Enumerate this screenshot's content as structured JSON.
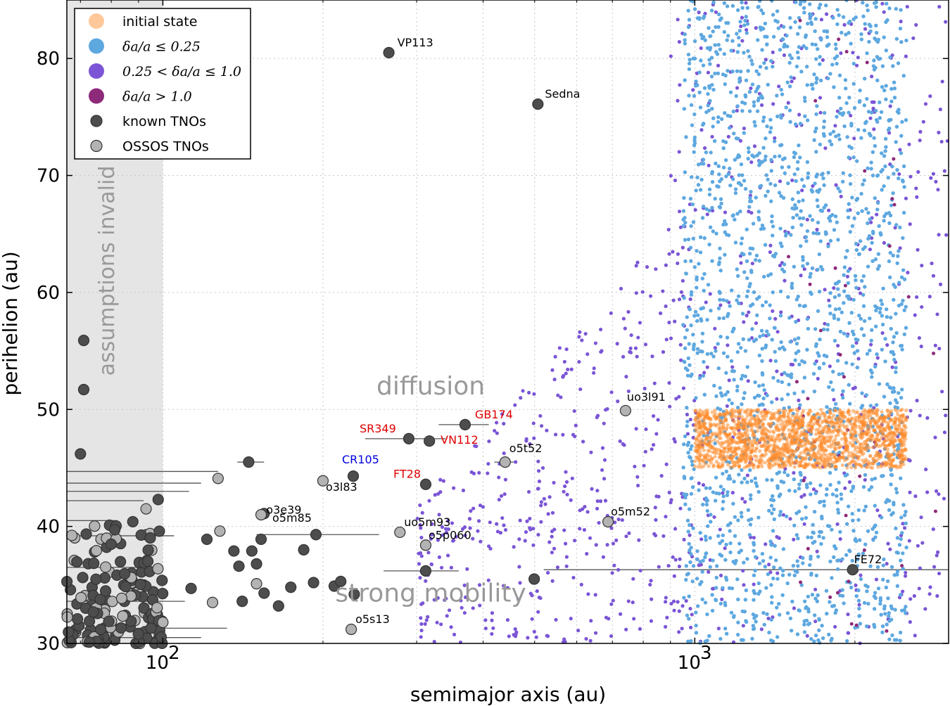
{
  "chart_data": {
    "type": "scatter",
    "xscale": "log",
    "xlim": [
      66,
      3000
    ],
    "ylim": [
      30,
      85
    ],
    "xlabel": "semimajor axis (au)",
    "ylabel": "perihelion (au)",
    "x_tick_labels": [
      {
        "value": 100,
        "base": "10",
        "exp": "2"
      },
      {
        "value": 1000,
        "base": "10",
        "exp": "3"
      }
    ],
    "y_ticks": [
      30,
      40,
      50,
      60,
      70,
      80
    ],
    "grid": true,
    "legend_position": "top-left",
    "legend": [
      {
        "key": "initial",
        "label": "initial state",
        "color": "#ffc89a",
        "math": false
      },
      {
        "key": "small",
        "label": "δa/a ≤ 0.25",
        "color": "#5ea8e0",
        "math": true
      },
      {
        "key": "medium",
        "label": "0.25 < δa/a ≤ 1.0",
        "color": "#7b55d6",
        "math": true
      },
      {
        "key": "large",
        "label": "δa/a > 1.0",
        "color": "#8e2a7a",
        "math": true
      },
      {
        "key": "known",
        "label": "known TNOs",
        "color": "#4d4d4d",
        "math": false
      },
      {
        "key": "ossos",
        "label": "OSSOS TNOs",
        "color": "#b3b3b3",
        "math": false
      }
    ],
    "colors": {
      "initial": "#ff8a2a",
      "small": "#5ea8e0",
      "medium": "#7b55d6",
      "large": "#8e2a7a",
      "known": "#4d4d4d",
      "ossos": "#b3b3b3",
      "shade": "#e5e5e5"
    },
    "shaded_region": {
      "x_range": [
        66,
        100
      ],
      "label": "assumptions invalid"
    },
    "region_labels": [
      {
        "text": "diffusion",
        "x": 300,
        "y": 52
      },
      {
        "text": "strong mobility",
        "x": 300,
        "y": 34.3
      }
    ],
    "simulation": {
      "initial_state": {
        "a_range": [
          1000,
          2500
        ],
        "q_range": [
          45,
          50
        ],
        "count": 1700
      },
      "small_change": {
        "a_range": [
          950,
          2500
        ],
        "q_range": [
          30,
          85
        ],
        "count": 1900
      },
      "medium_change": {
        "a_range": [
          300,
          3000
        ],
        "q_range": [
          30,
          85
        ],
        "count": 900
      },
      "large_change": {
        "a_range": [
          1500,
          3000
        ],
        "q_range": [
          30,
          85
        ],
        "count": 40
      }
    },
    "named_objects": [
      {
        "name": "VP113",
        "a": 266,
        "q": 80.5,
        "kind": "known",
        "label_color": "#000000",
        "lx": 12,
        "ly": -9
      },
      {
        "name": "Sedna",
        "a": 507,
        "q": 76.1,
        "kind": "known",
        "label_color": "#000000",
        "lx": 10,
        "ly": -9
      },
      {
        "name": "GB174",
        "a": 370,
        "q": 48.7,
        "kind": "known",
        "label_color": "#dd0000",
        "lx": 14,
        "ly": -9,
        "err": [
          330,
          410
        ]
      },
      {
        "name": "SR349",
        "a": 290,
        "q": 47.5,
        "kind": "known",
        "label_color": "#dd0000",
        "lx": -70,
        "ly": -9,
        "err": [
          240,
          340
        ]
      },
      {
        "name": "VN112",
        "a": 317,
        "q": 47.3,
        "kind": "known",
        "label_color": "#dd0000",
        "lx": 16,
        "ly": 4
      },
      {
        "name": "CR105",
        "a": 228,
        "q": 44.3,
        "kind": "known",
        "label_color": "#0000dd",
        "lx": -16,
        "ly": -18
      },
      {
        "name": "FT28",
        "a": 312,
        "q": 43.6,
        "kind": "known",
        "label_color": "#dd0000",
        "lx": -46,
        "ly": -9
      },
      {
        "name": "uo3l91",
        "a": 741,
        "q": 49.9,
        "kind": "ossos",
        "label_color": "#000000",
        "lx": 2,
        "ly": -14
      },
      {
        "name": "o5t52",
        "a": 440,
        "q": 45.5,
        "kind": "ossos",
        "label_color": "#000000",
        "lx": 6,
        "ly": -14,
        "err": [
          420,
          460
        ]
      },
      {
        "name": "o3l83",
        "a": 200,
        "q": 43.9,
        "kind": "ossos",
        "label_color": "#000000",
        "lx": 4,
        "ly": 14
      },
      {
        "name": "o3e39",
        "a": 155,
        "q": 41.1,
        "kind": "known",
        "label_color": "#000000",
        "lx": 3,
        "ly": 0
      },
      {
        "name": "o5m85",
        "a": 153,
        "q": 41.0,
        "kind": "ossos",
        "label_color": "#000000",
        "lx": 16,
        "ly": 10
      },
      {
        "name": "uo5m93",
        "a": 279,
        "q": 39.5,
        "kind": "ossos",
        "label_color": "#000000",
        "lx": 6,
        "ly": -9
      },
      {
        "name": "o5p060",
        "a": 312,
        "q": 38.4,
        "kind": "ossos",
        "label_color": "#000000",
        "lx": 4,
        "ly": -9
      },
      {
        "name": "o5m52",
        "a": 687,
        "q": 40.4,
        "kind": "ossos",
        "label_color": "#000000",
        "lx": 4,
        "ly": -9
      },
      {
        "name": "FE72",
        "a": 1980,
        "q": 36.3,
        "kind": "known",
        "label_color": "#000000",
        "lx": 2,
        "ly": -9,
        "err": [
          520,
          3000
        ]
      },
      {
        "name": "o5s13",
        "a": 226,
        "q": 31.2,
        "kind": "ossos",
        "label_color": "#000000",
        "lx": 6,
        "ly": -9
      }
    ],
    "other_objects": [
      {
        "a": 71,
        "q": 55.9,
        "kind": "known"
      },
      {
        "a": 71,
        "q": 51.7,
        "kind": "known"
      },
      {
        "a": 70,
        "q": 46.2,
        "kind": "known"
      },
      {
        "a": 145,
        "q": 45.5,
        "kind": "known",
        "err": [
          138,
          155
        ]
      },
      {
        "a": 127,
        "q": 44.1,
        "kind": "ossos"
      },
      {
        "a": 98,
        "q": 42.3,
        "kind": "known"
      },
      {
        "a": 93,
        "q": 41.5,
        "kind": "ossos"
      },
      {
        "a": 128,
        "q": 39.6,
        "kind": "ossos"
      },
      {
        "a": 194,
        "q": 39.3,
        "kind": "known",
        "err": [
          150,
          255
        ]
      },
      {
        "a": 153,
        "q": 38.9,
        "kind": "known"
      },
      {
        "a": 121,
        "q": 38.9,
        "kind": "known"
      },
      {
        "a": 184,
        "q": 38.0,
        "kind": "known"
      },
      {
        "a": 147,
        "q": 37.9,
        "kind": "known"
      },
      {
        "a": 136,
        "q": 37.9,
        "kind": "known"
      },
      {
        "a": 312,
        "q": 36.2,
        "kind": "known",
        "err": [
          260,
          360
        ]
      },
      {
        "a": 499,
        "q": 35.5,
        "kind": "known"
      },
      {
        "a": 139,
        "q": 36.6,
        "kind": "known"
      },
      {
        "a": 150,
        "q": 36.8,
        "kind": "known"
      },
      {
        "a": 150,
        "q": 35.1,
        "kind": "ossos"
      },
      {
        "a": 174,
        "q": 34.8,
        "kind": "known"
      },
      {
        "a": 210,
        "q": 34.9,
        "kind": "known"
      },
      {
        "a": 192,
        "q": 35.2,
        "kind": "known"
      },
      {
        "a": 216,
        "q": 35.3,
        "kind": "known"
      },
      {
        "a": 229,
        "q": 34.2,
        "kind": "known"
      },
      {
        "a": 165,
        "q": 33.2,
        "kind": "known"
      },
      {
        "a": 155,
        "q": 34.3,
        "kind": "known"
      },
      {
        "a": 141,
        "q": 33.6,
        "kind": "known"
      },
      {
        "a": 124,
        "q": 33.5,
        "kind": "ossos"
      },
      {
        "a": 113,
        "q": 34.7,
        "kind": "known"
      },
      {
        "a": 100,
        "q": 31.8,
        "kind": "ossos"
      },
      {
        "a": 95,
        "q": 31.3,
        "kind": "known"
      }
    ]
  }
}
